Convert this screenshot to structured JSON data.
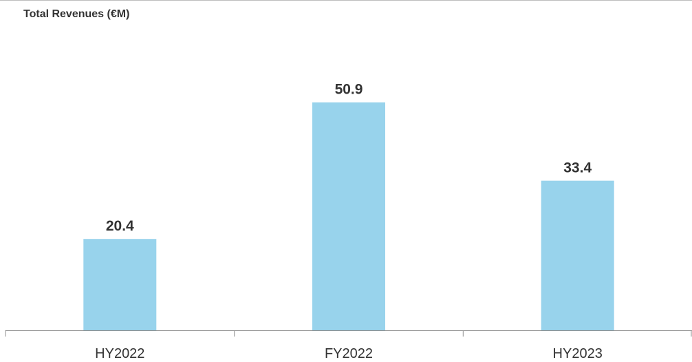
{
  "chart_data": {
    "type": "bar",
    "title": "Total Revenues (€M)",
    "xlabel": "",
    "ylabel": "",
    "categories": [
      "HY2022",
      "FY2022",
      "HY2023"
    ],
    "values": [
      20.4,
      50.9,
      33.4
    ],
    "value_labels": [
      "20.4",
      "50.9",
      "33.4"
    ],
    "ylim": [
      0,
      63
    ],
    "grid": false,
    "legend": "none",
    "bar_color": "#98d3ec",
    "label_color": "#333333",
    "tick_label_color": "#333333",
    "axis_color": "#8c8c8c"
  }
}
